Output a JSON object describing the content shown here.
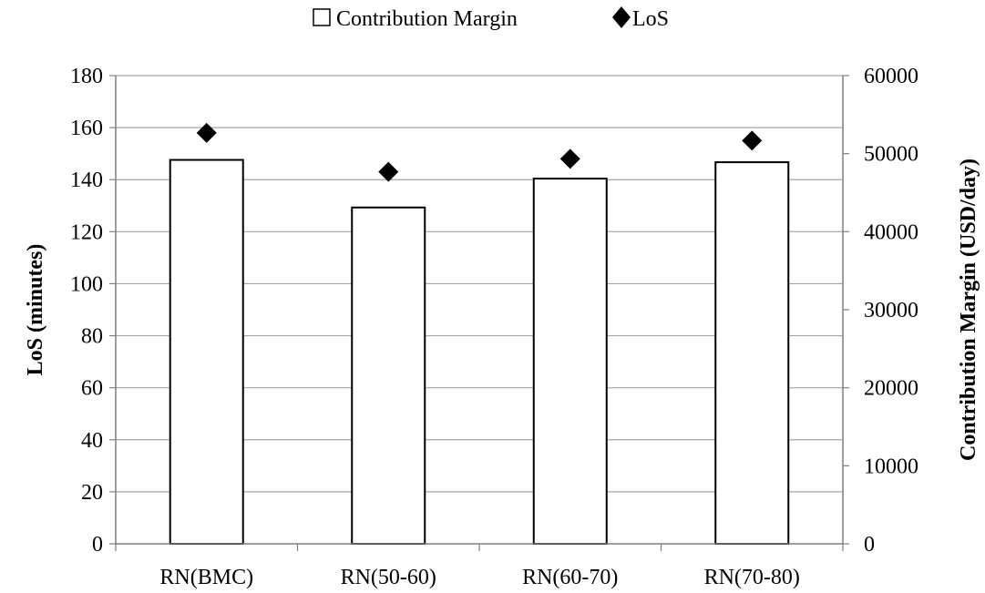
{
  "chart_data": {
    "type": "bar",
    "categories": [
      "RN(BMC)",
      "RN(50-60)",
      "RN(60-70)",
      "RN(70-80)"
    ],
    "series": [
      {
        "name": "Contribution Margin",
        "kind": "bar",
        "axis": "right",
        "values": [
          49200,
          43100,
          46800,
          48900
        ]
      },
      {
        "name": "LoS",
        "kind": "marker",
        "marker": "diamond",
        "axis": "left",
        "values": [
          158,
          143,
          148,
          155
        ]
      }
    ],
    "left_axis": {
      "label": "LoS (minutes)",
      "range": [
        0,
        180
      ],
      "ticks": [
        "0",
        "20",
        "40",
        "60",
        "80",
        "100",
        "120",
        "140",
        "160",
        "180"
      ]
    },
    "right_axis": {
      "label": "Contribution Margin (USD/day)",
      "range": [
        0,
        60000
      ],
      "ticks": [
        "0",
        "10000",
        "20000",
        "30000",
        "40000",
        "50000",
        "60000"
      ]
    },
    "grid": "horizontal",
    "legend": {
      "position": "top-center",
      "entries": [
        "Contribution Margin",
        "LoS"
      ]
    },
    "colors": {
      "bar_fill": "#ffffff",
      "bar_stroke": "#000000",
      "marker": "#000000",
      "grid": "#a6a6a6",
      "axis": "#7f7f7f"
    }
  }
}
